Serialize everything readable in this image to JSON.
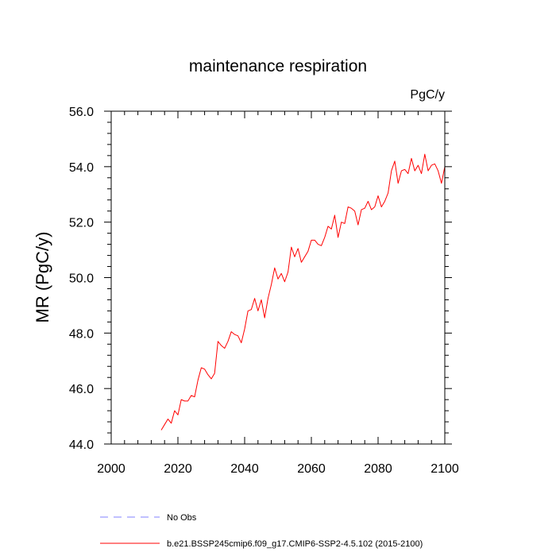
{
  "chart_data": {
    "type": "line",
    "title": "maintenance respiration",
    "units_label": "PgC/y",
    "xlabel": "",
    "ylabel": "MR  (PgC/y)",
    "xlim": [
      2000,
      2100
    ],
    "ylim": [
      44.0,
      56.0
    ],
    "x_ticks": [
      "2000",
      "2020",
      "2040",
      "2060",
      "2080",
      "2100"
    ],
    "y_ticks": [
      "44.0",
      "46.0",
      "48.0",
      "50.0",
      "52.0",
      "54.0",
      "56.0"
    ],
    "grid": false,
    "legend_position": "bottom",
    "legend": [
      {
        "label": "No Obs",
        "color": "#8080ff",
        "style": "dashed"
      },
      {
        "label": "b.e21.BSSP245cmip6.f09_g17.CMIP6-SSP2-4.5.102 (2015-2100)",
        "color": "#ff0000",
        "style": "solid"
      }
    ],
    "series": [
      {
        "name": "b.e21.BSSP245cmip6.f09_g17.CMIP6-SSP2-4.5.102 (2015-2100)",
        "color": "#ff0000",
        "x": [
          2015,
          2016,
          2017,
          2018,
          2019,
          2020,
          2021,
          2022,
          2023,
          2024,
          2025,
          2026,
          2027,
          2028,
          2029,
          2030,
          2031,
          2032,
          2033,
          2034,
          2035,
          2036,
          2037,
          2038,
          2039,
          2040,
          2041,
          2042,
          2043,
          2044,
          2045,
          2046,
          2047,
          2048,
          2049,
          2050,
          2051,
          2052,
          2053,
          2054,
          2055,
          2056,
          2057,
          2058,
          2059,
          2060,
          2061,
          2062,
          2063,
          2064,
          2065,
          2066,
          2067,
          2068,
          2069,
          2070,
          2071,
          2072,
          2073,
          2074,
          2075,
          2076,
          2077,
          2078,
          2079,
          2080,
          2081,
          2082,
          2083,
          2084,
          2085,
          2086,
          2087,
          2088,
          2089,
          2090,
          2091,
          2092,
          2093,
          2094,
          2095,
          2096,
          2097,
          2098,
          2099,
          2100
        ],
        "values": [
          44.5,
          44.7,
          44.9,
          44.75,
          45.2,
          45.05,
          45.6,
          45.55,
          45.55,
          45.75,
          45.7,
          46.3,
          46.75,
          46.7,
          46.5,
          46.35,
          46.55,
          47.7,
          47.55,
          47.45,
          47.7,
          48.05,
          47.95,
          47.9,
          47.65,
          48.15,
          48.8,
          48.85,
          49.25,
          48.8,
          49.2,
          48.55,
          49.25,
          49.75,
          50.35,
          49.95,
          50.15,
          49.85,
          50.2,
          51.1,
          50.75,
          51.05,
          50.55,
          50.75,
          50.95,
          51.35,
          51.35,
          51.2,
          51.15,
          51.45,
          51.85,
          51.75,
          52.25,
          51.45,
          52.0,
          51.95,
          52.55,
          52.5,
          52.4,
          51.9,
          52.45,
          52.5,
          52.75,
          52.45,
          52.55,
          52.95,
          52.55,
          52.75,
          53.05,
          53.85,
          54.2,
          53.4,
          53.85,
          53.9,
          53.75,
          54.3,
          53.85,
          54.05,
          53.75,
          54.45,
          53.85,
          54.05,
          54.1,
          53.85,
          53.4,
          54.0
        ]
      }
    ]
  }
}
